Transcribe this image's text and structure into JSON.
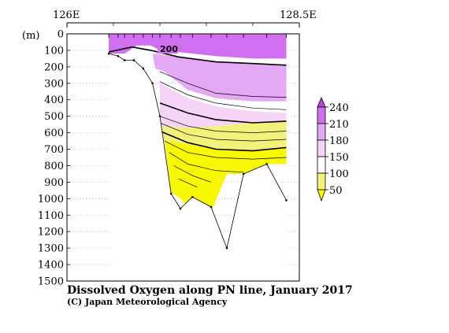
{
  "chart_data": {
    "type": "heatmap",
    "title": "Dissolved Oxygen along PN line, January 2017",
    "credit": "(C) Japan Meteorological Agency",
    "x_axis": {
      "top_labels": [
        "126E",
        "128.5E"
      ],
      "range": [
        126,
        128.5
      ]
    },
    "y_axis": {
      "unit_label": "(m)",
      "range": [
        0,
        1500
      ],
      "ticks": [
        0,
        100,
        200,
        300,
        400,
        500,
        600,
        700,
        800,
        900,
        1000,
        1100,
        1200,
        1300,
        1400,
        1500
      ],
      "inverted": true,
      "grid": "dotted"
    },
    "contour_labels": [
      {
        "text": "200",
        "lon": 127.0,
        "depth": 110
      }
    ],
    "colorbar": {
      "levels": [
        "240",
        "210",
        "180",
        "150",
        "100",
        "50"
      ],
      "colors": [
        "#c040e0",
        "#d070f0",
        "#e4a8f4",
        "#f6d4f6",
        "#ffffff",
        "#f2f27a",
        "#f8f800"
      ]
    },
    "bathymetry": [
      {
        "lon": 126.45,
        "depth": 120
      },
      {
        "lon": 126.55,
        "depth": 135
      },
      {
        "lon": 126.62,
        "depth": 160
      },
      {
        "lon": 126.72,
        "depth": 160
      },
      {
        "lon": 126.82,
        "depth": 210
      },
      {
        "lon": 126.92,
        "depth": 300
      },
      {
        "lon": 127.0,
        "depth": 500
      },
      {
        "lon": 127.12,
        "depth": 970
      },
      {
        "lon": 127.22,
        "depth": 1060
      },
      {
        "lon": 127.35,
        "depth": 990
      },
      {
        "lon": 127.55,
        "depth": 1050
      },
      {
        "lon": 127.72,
        "depth": 1300
      },
      {
        "lon": 127.9,
        "depth": 850
      },
      {
        "lon": 128.15,
        "depth": 790
      },
      {
        "lon": 128.36,
        "depth": 1010
      }
    ],
    "stations": [
      126.45,
      126.55,
      126.62,
      126.72,
      126.82,
      126.92,
      127.0,
      127.12,
      127.22,
      127.35,
      127.55,
      127.72,
      127.9,
      128.15,
      128.36
    ],
    "bands": [
      {
        "level": "210-240",
        "color": "#c040e0",
        "profile": [
          {
            "lon": 126.65,
            "depth": 0
          },
          {
            "lon": 126.9,
            "depth": 0
          },
          {
            "lon": 126.9,
            "depth": 40
          },
          {
            "lon": 126.65,
            "depth": 40
          }
        ]
      },
      {
        "level": "200-210",
        "color": "#d070f0",
        "profile": [
          {
            "lon": 126.45,
            "depth": 0
          },
          {
            "lon": 128.36,
            "depth": 0
          },
          {
            "lon": 128.36,
            "depth": 150
          },
          {
            "lon": 128.0,
            "depth": 150
          },
          {
            "lon": 127.6,
            "depth": 135
          },
          {
            "lon": 127.2,
            "depth": 110
          },
          {
            "lon": 127.0,
            "depth": 100
          },
          {
            "lon": 126.9,
            "depth": 70
          },
          {
            "lon": 126.75,
            "depth": 70
          },
          {
            "lon": 126.62,
            "depth": 120
          },
          {
            "lon": 126.45,
            "depth": 120
          }
        ]
      },
      {
        "level": "180-200",
        "color": "#e4a8f4",
        "profile": [
          {
            "lon": 126.92,
            "depth": 120
          },
          {
            "lon": 127.2,
            "depth": 140
          },
          {
            "lon": 127.6,
            "depth": 170
          },
          {
            "lon": 128.0,
            "depth": 180
          },
          {
            "lon": 128.36,
            "depth": 190
          },
          {
            "lon": 128.36,
            "depth": 410
          },
          {
            "lon": 128.0,
            "depth": 410
          },
          {
            "lon": 127.6,
            "depth": 390
          },
          {
            "lon": 127.3,
            "depth": 340
          },
          {
            "lon": 127.05,
            "depth": 230
          },
          {
            "lon": 126.95,
            "depth": 210
          }
        ]
      },
      {
        "level": "150-180",
        "color": "#f6d4f6",
        "profile": [
          {
            "lon": 127.0,
            "depth": 300
          },
          {
            "lon": 127.3,
            "depth": 390
          },
          {
            "lon": 127.6,
            "depth": 440
          },
          {
            "lon": 128.0,
            "depth": 470
          },
          {
            "lon": 128.36,
            "depth": 480
          },
          {
            "lon": 128.36,
            "depth": 530
          },
          {
            "lon": 128.0,
            "depth": 540
          },
          {
            "lon": 127.6,
            "depth": 560
          },
          {
            "lon": 127.3,
            "depth": 570
          },
          {
            "lon": 127.0,
            "depth": 560
          }
        ]
      },
      {
        "level": "100-150",
        "color": "#f2f27a",
        "profile": [
          {
            "lon": 127.0,
            "depth": 560
          },
          {
            "lon": 127.3,
            "depth": 570
          },
          {
            "lon": 127.6,
            "depth": 560
          },
          {
            "lon": 128.0,
            "depth": 540
          },
          {
            "lon": 128.36,
            "depth": 530
          },
          {
            "lon": 128.36,
            "depth": 690
          },
          {
            "lon": 128.0,
            "depth": 710
          },
          {
            "lon": 127.6,
            "depth": 700
          },
          {
            "lon": 127.3,
            "depth": 670
          },
          {
            "lon": 127.0,
            "depth": 640
          }
        ]
      },
      {
        "level": "50-100",
        "color": "#f8f800",
        "profile": [
          {
            "lon": 127.0,
            "depth": 640
          },
          {
            "lon": 127.3,
            "depth": 670
          },
          {
            "lon": 127.6,
            "depth": 700
          },
          {
            "lon": 128.0,
            "depth": 710
          },
          {
            "lon": 128.36,
            "depth": 690
          },
          {
            "lon": 128.36,
            "depth": 790
          },
          {
            "lon": 128.15,
            "depth": 790
          },
          {
            "lon": 127.9,
            "depth": 850
          },
          {
            "lon": 127.72,
            "depth": 850
          },
          {
            "lon": 127.55,
            "depth": 1080
          },
          {
            "lon": 127.35,
            "depth": 1080
          },
          {
            "lon": 127.22,
            "depth": 1000
          },
          {
            "lon": 127.12,
            "depth": 960
          },
          {
            "lon": 127.05,
            "depth": 650
          }
        ]
      }
    ],
    "contours": [
      {
        "bold": true,
        "points": [
          {
            "lon": 126.45,
            "depth": 110
          },
          {
            "lon": 126.7,
            "depth": 80
          },
          {
            "lon": 126.9,
            "depth": 100
          },
          {
            "lon": 127.2,
            "depth": 140
          },
          {
            "lon": 127.6,
            "depth": 170
          },
          {
            "lon": 128.0,
            "depth": 180
          },
          {
            "lon": 128.36,
            "depth": 190
          }
        ]
      },
      {
        "bold": false,
        "points": [
          {
            "lon": 127.0,
            "depth": 230
          },
          {
            "lon": 127.3,
            "depth": 300
          },
          {
            "lon": 127.6,
            "depth": 360
          },
          {
            "lon": 128.0,
            "depth": 380
          },
          {
            "lon": 128.36,
            "depth": 385
          }
        ]
      },
      {
        "bold": false,
        "points": [
          {
            "lon": 127.0,
            "depth": 290
          },
          {
            "lon": 127.3,
            "depth": 370
          },
          {
            "lon": 127.6,
            "depth": 420
          },
          {
            "lon": 128.0,
            "depth": 450
          },
          {
            "lon": 128.36,
            "depth": 460
          }
        ]
      },
      {
        "bold": true,
        "points": [
          {
            "lon": 127.0,
            "depth": 420
          },
          {
            "lon": 127.3,
            "depth": 480
          },
          {
            "lon": 127.6,
            "depth": 520
          },
          {
            "lon": 128.0,
            "depth": 540
          },
          {
            "lon": 128.36,
            "depth": 530
          }
        ]
      },
      {
        "bold": false,
        "points": [
          {
            "lon": 127.0,
            "depth": 500
          },
          {
            "lon": 127.3,
            "depth": 560
          },
          {
            "lon": 127.6,
            "depth": 590
          },
          {
            "lon": 128.0,
            "depth": 600
          },
          {
            "lon": 128.36,
            "depth": 590
          }
        ]
      },
      {
        "bold": false,
        "points": [
          {
            "lon": 127.0,
            "depth": 540
          },
          {
            "lon": 127.3,
            "depth": 610
          },
          {
            "lon": 127.6,
            "depth": 640
          },
          {
            "lon": 128.0,
            "depth": 650
          },
          {
            "lon": 128.36,
            "depth": 640
          }
        ]
      },
      {
        "bold": true,
        "points": [
          {
            "lon": 127.0,
            "depth": 590
          },
          {
            "lon": 127.3,
            "depth": 660
          },
          {
            "lon": 127.6,
            "depth": 700
          },
          {
            "lon": 128.0,
            "depth": 710
          },
          {
            "lon": 128.36,
            "depth": 690
          }
        ]
      },
      {
        "bold": false,
        "points": [
          {
            "lon": 127.05,
            "depth": 650
          },
          {
            "lon": 127.3,
            "depth": 720
          },
          {
            "lon": 127.6,
            "depth": 750
          },
          {
            "lon": 128.0,
            "depth": 760
          },
          {
            "lon": 128.36,
            "depth": 750
          }
        ]
      },
      {
        "bold": false,
        "points": [
          {
            "lon": 127.1,
            "depth": 720
          },
          {
            "lon": 127.3,
            "depth": 790
          },
          {
            "lon": 127.6,
            "depth": 830
          },
          {
            "lon": 127.9,
            "depth": 840
          }
        ]
      },
      {
        "bold": false,
        "points": [
          {
            "lon": 127.15,
            "depth": 800
          },
          {
            "lon": 127.35,
            "depth": 860
          },
          {
            "lon": 127.55,
            "depth": 900
          }
        ]
      },
      {
        "bold": false,
        "points": [
          {
            "lon": 127.2,
            "depth": 880
          },
          {
            "lon": 127.4,
            "depth": 930
          }
        ]
      }
    ]
  }
}
